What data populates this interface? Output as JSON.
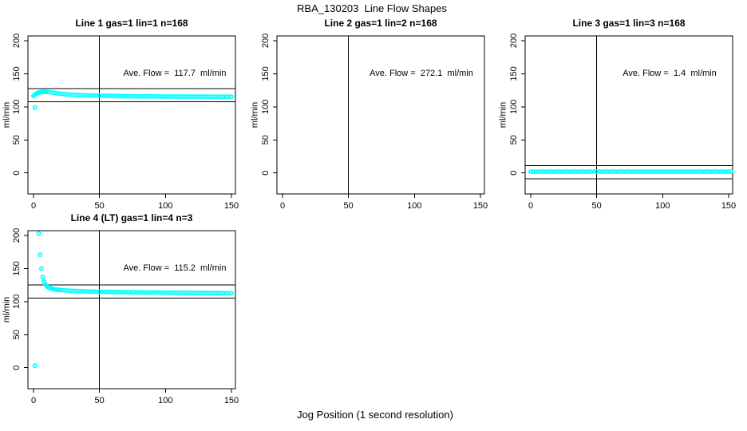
{
  "main_title": "RBA_130203  Line Flow Shapes",
  "xlabel": "Jog Position (1 second resolution)",
  "ylabel": "ml/min",
  "colors": {
    "points": "#00ffff",
    "axis": "#000000",
    "background": "#ffffff"
  },
  "chart_data": [
    {
      "type": "scatter",
      "title": "Line 1 gas=1 lin=1 n=168",
      "annotation": "Ave. Flow =  117.7  ml/min",
      "ave_flow_ml_min": 117.7,
      "n": 168,
      "xticks": [
        0,
        50,
        100,
        150
      ],
      "yticks": [
        0,
        50,
        100,
        150,
        200
      ],
      "xlim": [
        -4,
        153
      ],
      "ylim": [
        -32,
        207
      ],
      "vline_x": 50,
      "hlines_y": [
        107.7,
        127.7
      ],
      "marker": "circle-open",
      "x": [
        0,
        1,
        2,
        3,
        4,
        5,
        6,
        7,
        8,
        9,
        10,
        12,
        14,
        16,
        18,
        20,
        22,
        24,
        26,
        28,
        30,
        32,
        34,
        36,
        38,
        40,
        42,
        44,
        46,
        48,
        50,
        52,
        54,
        56,
        58,
        60,
        62,
        64,
        66,
        68,
        70,
        72,
        74,
        76,
        78,
        80,
        82,
        84,
        86,
        88,
        90,
        92,
        94,
        96,
        98,
        100,
        102,
        104,
        106,
        108,
        110,
        112,
        114,
        116,
        118,
        120,
        122,
        124,
        126,
        128,
        130,
        132,
        134,
        136,
        138,
        140,
        142,
        144,
        146,
        148,
        150
      ],
      "y": [
        116.5,
        118.3,
        119.6,
        120.8,
        121.6,
        122.2,
        122.5,
        122.6,
        122.6,
        122.6,
        122.5,
        122.2,
        121.7,
        121.1,
        120.5,
        119.9,
        119.5,
        119.1,
        118.8,
        118.5,
        118.3,
        118.1,
        117.9,
        117.7,
        117.5,
        117.4,
        117.2,
        117.1,
        117.0,
        116.9,
        116.8,
        116.7,
        116.6,
        116.5,
        116.4,
        116.4,
        116.3,
        116.3,
        116.2,
        116.2,
        116.1,
        116.1,
        116.0,
        116.0,
        115.9,
        115.9,
        115.9,
        115.8,
        115.8,
        115.8,
        115.7,
        115.7,
        115.7,
        115.7,
        115.6,
        115.6,
        115.6,
        115.6,
        115.6,
        115.5,
        115.5,
        115.5,
        115.5,
        115.5,
        115.4,
        115.4,
        115.4,
        115.4,
        115.4,
        115.4,
        115.3,
        115.3,
        115.3,
        115.3,
        115.3,
        115.3,
        115.2,
        115.2,
        115.2,
        115.2,
        115.2
      ],
      "outliers": [
        [
          1,
          99
        ]
      ]
    },
    {
      "type": "scatter",
      "title": "Line 2 gas=1 lin=2 n=168",
      "annotation": "Ave. Flow =  272.1  ml/min",
      "ave_flow_ml_min": 272.1,
      "n": 168,
      "xticks": [
        0,
        50,
        100,
        150
      ],
      "yticks": [
        0,
        50,
        100,
        150,
        200
      ],
      "xlim": [
        -4,
        153
      ],
      "ylim": [
        -32,
        207
      ],
      "vline_x": 50,
      "hlines_y": [],
      "marker": "circle-open",
      "x": [],
      "y": [],
      "outliers": []
    },
    {
      "type": "scatter",
      "title": "Line 3 gas=1 lin=3 n=168",
      "annotation": "Ave. Flow =  1.4  ml/min",
      "ave_flow_ml_min": 1.4,
      "n": 168,
      "xticks": [
        0,
        50,
        100,
        150
      ],
      "yticks": [
        0,
        50,
        100,
        150,
        200
      ],
      "xlim": [
        -4,
        153
      ],
      "ylim": [
        -32,
        207
      ],
      "vline_x": 50,
      "hlines_y": [
        -8.6,
        11.4
      ],
      "marker": "circle-open",
      "x": [
        0,
        2,
        4,
        6,
        8,
        10,
        12,
        14,
        16,
        18,
        20,
        22,
        24,
        26,
        28,
        30,
        32,
        34,
        36,
        38,
        40,
        42,
        44,
        46,
        48,
        50,
        52,
        54,
        56,
        58,
        60,
        62,
        64,
        66,
        68,
        70,
        72,
        74,
        76,
        78,
        80,
        82,
        84,
        86,
        88,
        90,
        92,
        94,
        96,
        98,
        100,
        102,
        104,
        106,
        108,
        110,
        112,
        114,
        116,
        118,
        120,
        122,
        124,
        126,
        128,
        130,
        132,
        134,
        136,
        138,
        140,
        142,
        144,
        146,
        148,
        150,
        152
      ],
      "y": [
        2,
        2,
        2,
        2,
        2,
        2,
        2,
        2,
        2,
        2,
        2,
        2,
        2,
        2,
        2,
        2,
        2,
        2,
        2,
        2,
        2,
        2,
        2,
        2,
        2,
        2,
        2,
        2,
        2,
        2,
        2,
        2,
        2,
        2,
        2,
        2,
        2,
        2,
        2,
        2,
        2,
        2,
        2,
        2,
        2,
        2,
        2,
        2,
        2,
        2,
        2,
        2,
        2,
        2,
        2,
        2,
        2,
        2,
        2,
        2,
        2,
        2,
        2,
        2,
        2,
        2,
        2,
        2,
        2,
        2,
        2,
        2,
        2,
        2,
        2,
        2,
        2
      ],
      "outliers": []
    },
    {
      "type": "scatter",
      "title": "Line 4 (LT) gas=1 lin=4 n=3",
      "annotation": "Ave. Flow =  115.2  ml/min",
      "ave_flow_ml_min": 115.2,
      "n": 3,
      "xticks": [
        0,
        50,
        100,
        150
      ],
      "yticks": [
        0,
        50,
        100,
        150,
        200
      ],
      "xlim": [
        -4,
        153
      ],
      "ylim": [
        -32,
        207
      ],
      "vline_x": 50,
      "hlines_y": [
        105.2,
        125.2
      ],
      "marker": "circle-open",
      "x": [
        4,
        5,
        6,
        7,
        8,
        9,
        10,
        11,
        12,
        13,
        14,
        15,
        16,
        17,
        18,
        19,
        20,
        22,
        24,
        26,
        28,
        30,
        32,
        34,
        36,
        38,
        40,
        42,
        44,
        46,
        48,
        50,
        52,
        54,
        56,
        58,
        60,
        62,
        64,
        66,
        68,
        70,
        72,
        74,
        76,
        78,
        80,
        82,
        84,
        86,
        88,
        90,
        92,
        94,
        96,
        98,
        100,
        102,
        104,
        106,
        108,
        110,
        112,
        114,
        116,
        118,
        120,
        122,
        124,
        126,
        128,
        130,
        132,
        134,
        136,
        138,
        140,
        142,
        144,
        146,
        148,
        150
      ],
      "y": [
        203,
        171,
        150,
        137,
        130,
        126,
        123.5,
        122,
        121,
        120.2,
        119.5,
        119,
        118.5,
        118.2,
        118,
        117.7,
        117.5,
        117.2,
        116.9,
        116.7,
        116.4,
        116.2,
        116.0,
        115.9,
        115.7,
        115.6,
        115.4,
        115.3,
        115.2,
        115.1,
        115.0,
        114.9,
        114.8,
        114.7,
        114.6,
        114.5,
        114.5,
        114.4,
        114.3,
        114.3,
        114.2,
        114.2,
        114.1,
        114.1,
        114.0,
        114.0,
        113.9,
        113.9,
        113.8,
        113.8,
        113.7,
        113.7,
        113.6,
        113.6,
        113.6,
        113.5,
        113.5,
        113.4,
        113.4,
        113.4,
        113.3,
        113.3,
        113.3,
        113.2,
        113.2,
        113.2,
        113.1,
        113.1,
        113.1,
        113.0,
        113.0,
        113.0,
        112.9,
        112.9,
        112.9,
        112.8,
        112.8,
        112.8,
        112.7,
        112.7,
        112.7,
        112.6
      ],
      "outliers": [
        [
          1,
          3
        ]
      ]
    }
  ]
}
